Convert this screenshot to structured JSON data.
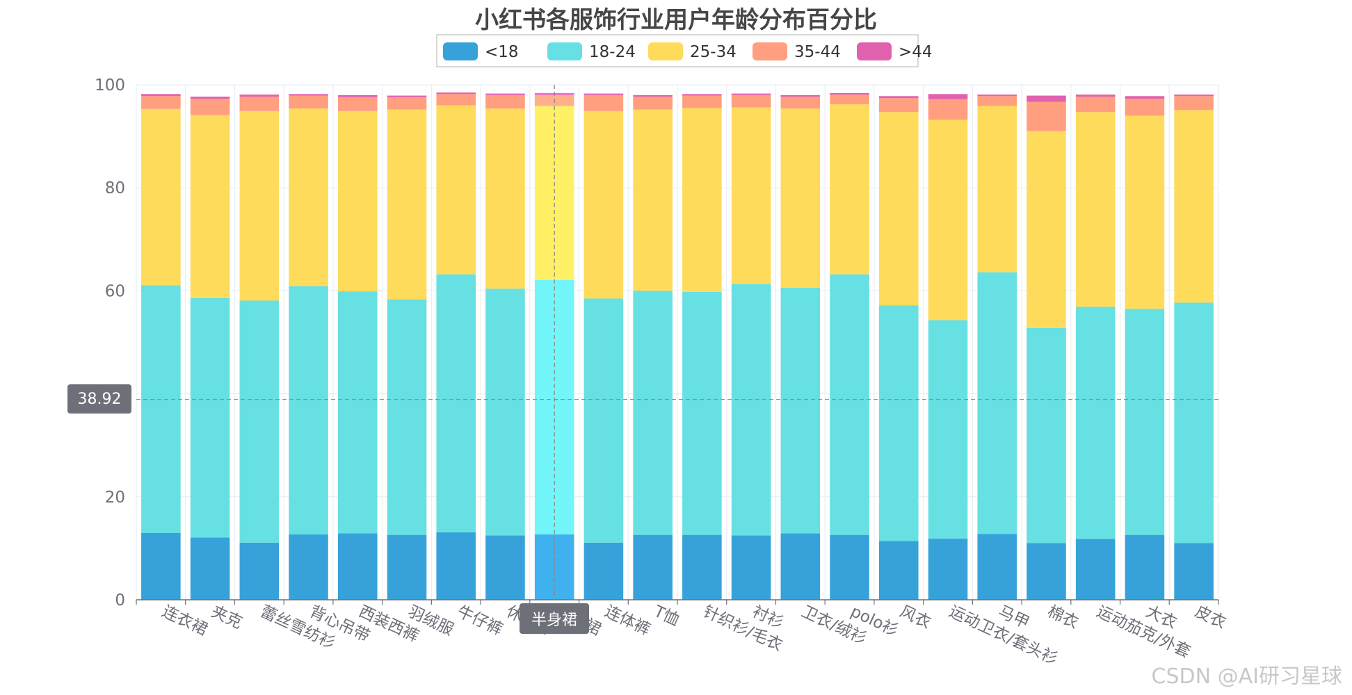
{
  "chart_data": {
    "type": "bar",
    "stacked": true,
    "title": "小红书各服饰行业用户年龄分布百分比",
    "xlabel": "",
    "ylabel": "",
    "ylim": [
      0,
      100
    ],
    "yticks": [
      0,
      20,
      40,
      60,
      80,
      100
    ],
    "grid": true,
    "legend_position": "top-center",
    "categories": [
      "连衣裙",
      "夹克",
      "蕾丝雪纺衫",
      "背心吊带",
      "西装西裤",
      "羽绒服",
      "牛仔裤",
      "休闲裤",
      "半身裙",
      "连体裤",
      "T恤",
      "针织衫/毛衣",
      "衬衫",
      "卫衣/绒衫",
      "polo衫",
      "风衣",
      "运动卫衣/套头衫",
      "马甲",
      "棉衣",
      "运动茄克/外套",
      "大衣",
      "皮衣"
    ],
    "series": [
      {
        "name": "<18",
        "color": "#37a2da",
        "values": [
          13.0,
          12.1,
          11.1,
          12.7,
          12.9,
          12.6,
          13.1,
          12.5,
          12.7,
          11.1,
          12.6,
          12.6,
          12.5,
          12.9,
          12.6,
          11.4,
          11.9,
          12.8,
          11.0,
          11.8,
          12.6,
          11.0
        ]
      },
      {
        "name": "18-24",
        "color": "#67e0e3",
        "values": [
          48.1,
          46.5,
          47.0,
          48.2,
          47.0,
          45.7,
          50.1,
          47.9,
          49.4,
          47.4,
          47.4,
          47.2,
          48.8,
          47.7,
          50.6,
          45.8,
          42.4,
          50.8,
          41.8,
          45.1,
          43.9,
          46.7
        ]
      },
      {
        "name": "25-34",
        "color": "#ffdb5c",
        "values": [
          34.2,
          35.5,
          36.8,
          34.5,
          35.0,
          36.9,
          32.8,
          35.0,
          33.8,
          36.4,
          35.2,
          35.7,
          34.3,
          34.8,
          33.0,
          37.5,
          38.9,
          32.3,
          38.2,
          37.8,
          37.5,
          37.4
        ]
      },
      {
        "name": "35-44",
        "color": "#ff9f7f",
        "values": [
          2.5,
          3.2,
          2.8,
          2.5,
          2.7,
          2.4,
          2.2,
          2.6,
          2.1,
          3.1,
          2.5,
          2.4,
          2.4,
          2.3,
          1.9,
          2.7,
          4.0,
          1.9,
          5.7,
          3.0,
          3.3,
          2.7
        ]
      },
      {
        "name": ">44",
        "color": "#e062ae",
        "values": [
          0.4,
          0.4,
          0.4,
          0.3,
          0.4,
          0.3,
          0.3,
          0.3,
          0.4,
          0.3,
          0.3,
          0.3,
          0.3,
          0.3,
          0.3,
          0.4,
          1.0,
          0.3,
          1.2,
          0.4,
          0.5,
          0.3
        ]
      }
    ],
    "axis_pointer": {
      "y_value": "38.92",
      "category": "半身裙"
    }
  },
  "watermark": "CSDN @AI研习星球"
}
